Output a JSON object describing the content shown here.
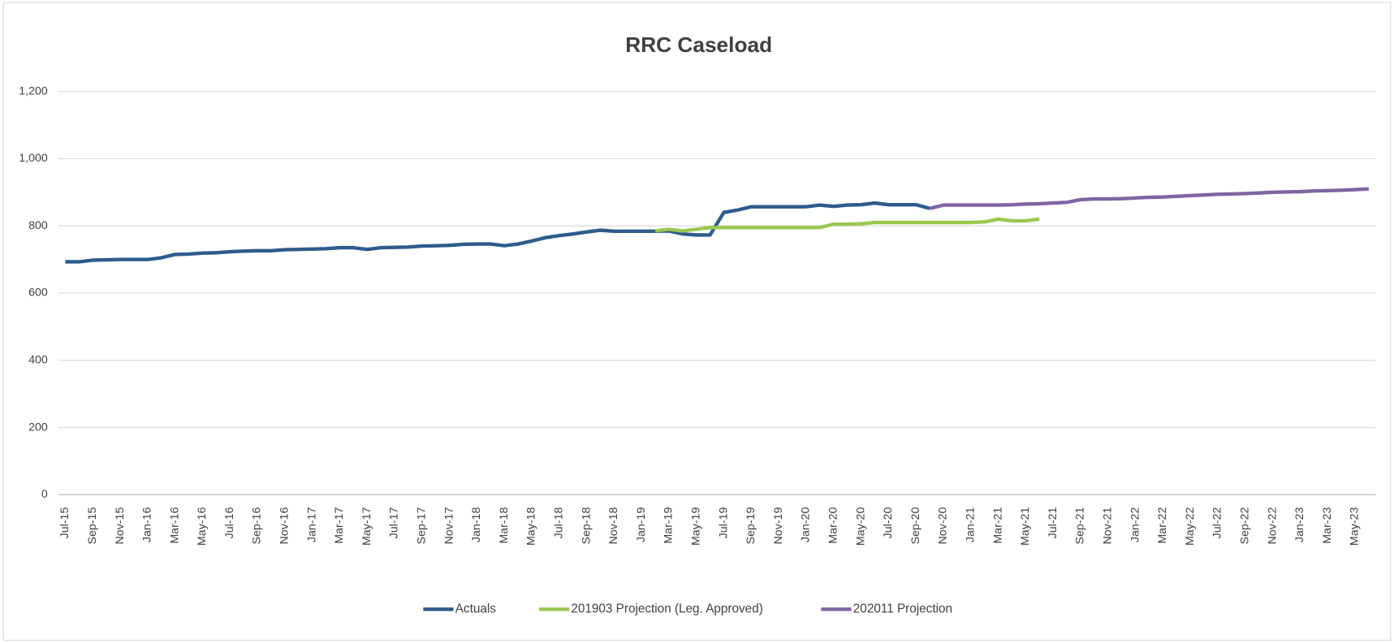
{
  "chart_data": {
    "type": "line",
    "title": "RRC Caseload",
    "categories": [
      "Jul-15",
      null,
      "Sep-15",
      null,
      "Nov-15",
      null,
      "Jan-16",
      null,
      "Mar-16",
      null,
      "May-16",
      null,
      "Jul-16",
      null,
      "Sep-16",
      null,
      "Nov-16",
      null,
      "Jan-17",
      null,
      "Mar-17",
      null,
      "May-17",
      null,
      "Jul-17",
      null,
      "Sep-17",
      null,
      "Nov-17",
      null,
      "Jan-18",
      null,
      "Mar-18",
      null,
      "May-18",
      null,
      "Jul-18",
      null,
      "Sep-18",
      null,
      "Nov-18",
      null,
      "Jan-19",
      null,
      "Mar-19",
      null,
      "May-19",
      null,
      "Jul-19",
      null,
      "Sep-19",
      null,
      "Nov-19",
      null,
      "Jan-20",
      null,
      "Mar-20",
      null,
      "May-20",
      null,
      "Jul-20",
      null,
      "Sep-20",
      null,
      "Nov-20",
      null,
      "Jan-21",
      null,
      "Mar-21",
      null,
      "May-21",
      null,
      "Jul-21",
      null,
      "Sep-21",
      null,
      "Nov-21",
      null,
      "Jan-22",
      null,
      "Mar-22",
      null,
      "May-22",
      null,
      "Jul-22",
      null,
      "Sep-22",
      null,
      "Nov-22",
      null,
      "Jan-23",
      null,
      "Mar-23",
      null,
      "May-23",
      null
    ],
    "series": [
      {
        "name": "Actuals",
        "color": "#2f5b8c",
        "values": [
          693,
          693,
          698,
          699,
          700,
          700,
          700,
          705,
          715,
          716,
          719,
          720,
          723,
          725,
          726,
          726,
          729,
          730,
          731,
          732,
          735,
          735,
          730,
          735,
          736,
          737,
          740,
          741,
          742,
          745,
          746,
          746,
          741,
          746,
          755,
          765,
          771,
          776,
          782,
          787,
          784,
          784,
          784,
          784,
          785,
          776,
          773,
          773,
          840,
          847,
          857,
          857,
          857,
          857,
          857,
          862,
          858,
          862,
          863,
          868,
          863,
          863,
          863,
          852,
          null,
          null,
          null,
          null,
          null,
          null,
          null,
          null,
          null,
          null,
          null,
          null,
          null,
          null,
          null,
          null,
          null,
          null,
          null,
          null,
          null,
          null,
          null,
          null,
          null,
          null,
          null,
          null,
          null,
          null,
          null,
          null
        ]
      },
      {
        "name": "201903 Projection (Leg. Approved)",
        "color": "#9ac850",
        "values": [
          null,
          null,
          null,
          null,
          null,
          null,
          null,
          null,
          null,
          null,
          null,
          null,
          null,
          null,
          null,
          null,
          null,
          null,
          null,
          null,
          null,
          null,
          null,
          null,
          null,
          null,
          null,
          null,
          null,
          null,
          null,
          null,
          null,
          null,
          null,
          null,
          null,
          null,
          null,
          null,
          null,
          null,
          null,
          785,
          790,
          785,
          790,
          795,
          795,
          795,
          795,
          795,
          795,
          795,
          795,
          795,
          805,
          805,
          806,
          810,
          810,
          810,
          810,
          810,
          810,
          810,
          810,
          812,
          820,
          815,
          815,
          820,
          null,
          null,
          null,
          null,
          null,
          null,
          null,
          null,
          null,
          null,
          null,
          null,
          null,
          null,
          null,
          null,
          null,
          null,
          null,
          null,
          null,
          null,
          null,
          null
        ]
      },
      {
        "name": "202011 Projection",
        "color": "#8064a2",
        "values": [
          null,
          null,
          null,
          null,
          null,
          null,
          null,
          null,
          null,
          null,
          null,
          null,
          null,
          null,
          null,
          null,
          null,
          null,
          null,
          null,
          null,
          null,
          null,
          null,
          null,
          null,
          null,
          null,
          null,
          null,
          null,
          null,
          null,
          null,
          null,
          null,
          null,
          null,
          null,
          null,
          null,
          null,
          null,
          null,
          null,
          null,
          null,
          null,
          null,
          null,
          null,
          null,
          null,
          null,
          null,
          null,
          null,
          null,
          null,
          null,
          null,
          null,
          null,
          852,
          862,
          862,
          862,
          862,
          862,
          863,
          865,
          866,
          868,
          870,
          878,
          880,
          880,
          881,
          883,
          885,
          886,
          888,
          890,
          892,
          894,
          895,
          896,
          898,
          900,
          901,
          902,
          904,
          905,
          906,
          908,
          910
        ]
      }
    ],
    "ylim": [
      0,
      1200
    ],
    "yticks": [
      0,
      200,
      400,
      600,
      800,
      {
        "value": 1000,
        "label": "1,000"
      },
      {
        "value": 1200,
        "label": "1,200"
      }
    ],
    "grid": true,
    "legend": "bottom"
  }
}
